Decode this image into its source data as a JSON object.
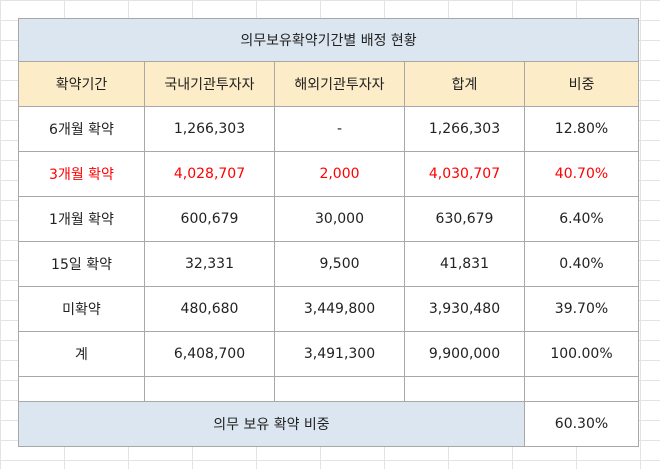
{
  "title": "의무보유확약기간별 배정 현황",
  "headers": [
    "확약기간",
    "국내기관투자자",
    "해외기관투자자",
    "합계",
    "비중"
  ],
  "rows": [
    {
      "period": "6개월 확약",
      "domestic": "1,266,303",
      "foreign": "-",
      "total": "1,266,303",
      "ratio": "12.80%",
      "highlight": false
    },
    {
      "period": "3개월 확약",
      "domestic": "4,028,707",
      "foreign": "2,000",
      "total": "4,030,707",
      "ratio": "40.70%",
      "highlight": true
    },
    {
      "period": "1개월 확약",
      "domestic": "600,679",
      "foreign": "30,000",
      "total": "630,679",
      "ratio": "6.40%",
      "highlight": false
    },
    {
      "period": "15일 확약",
      "domestic": "32,331",
      "foreign": "9,500",
      "total": "41,831",
      "ratio": "0.40%",
      "highlight": false
    },
    {
      "period": "미확약",
      "domestic": "480,680",
      "foreign": "3,449,800",
      "total": "3,930,480",
      "ratio": "39.70%",
      "highlight": false
    },
    {
      "period": "계",
      "domestic": "6,408,700",
      "foreign": "3,491,300",
      "total": "9,900,000",
      "ratio": "100.00%",
      "highlight": false
    }
  ],
  "footer": {
    "label": "의무 보유 확약 비중",
    "value": "60.30%"
  },
  "colors": {
    "title_bg": "#dce6f1",
    "header_bg": "#fdecc8",
    "highlight_text": "#ff0000"
  }
}
